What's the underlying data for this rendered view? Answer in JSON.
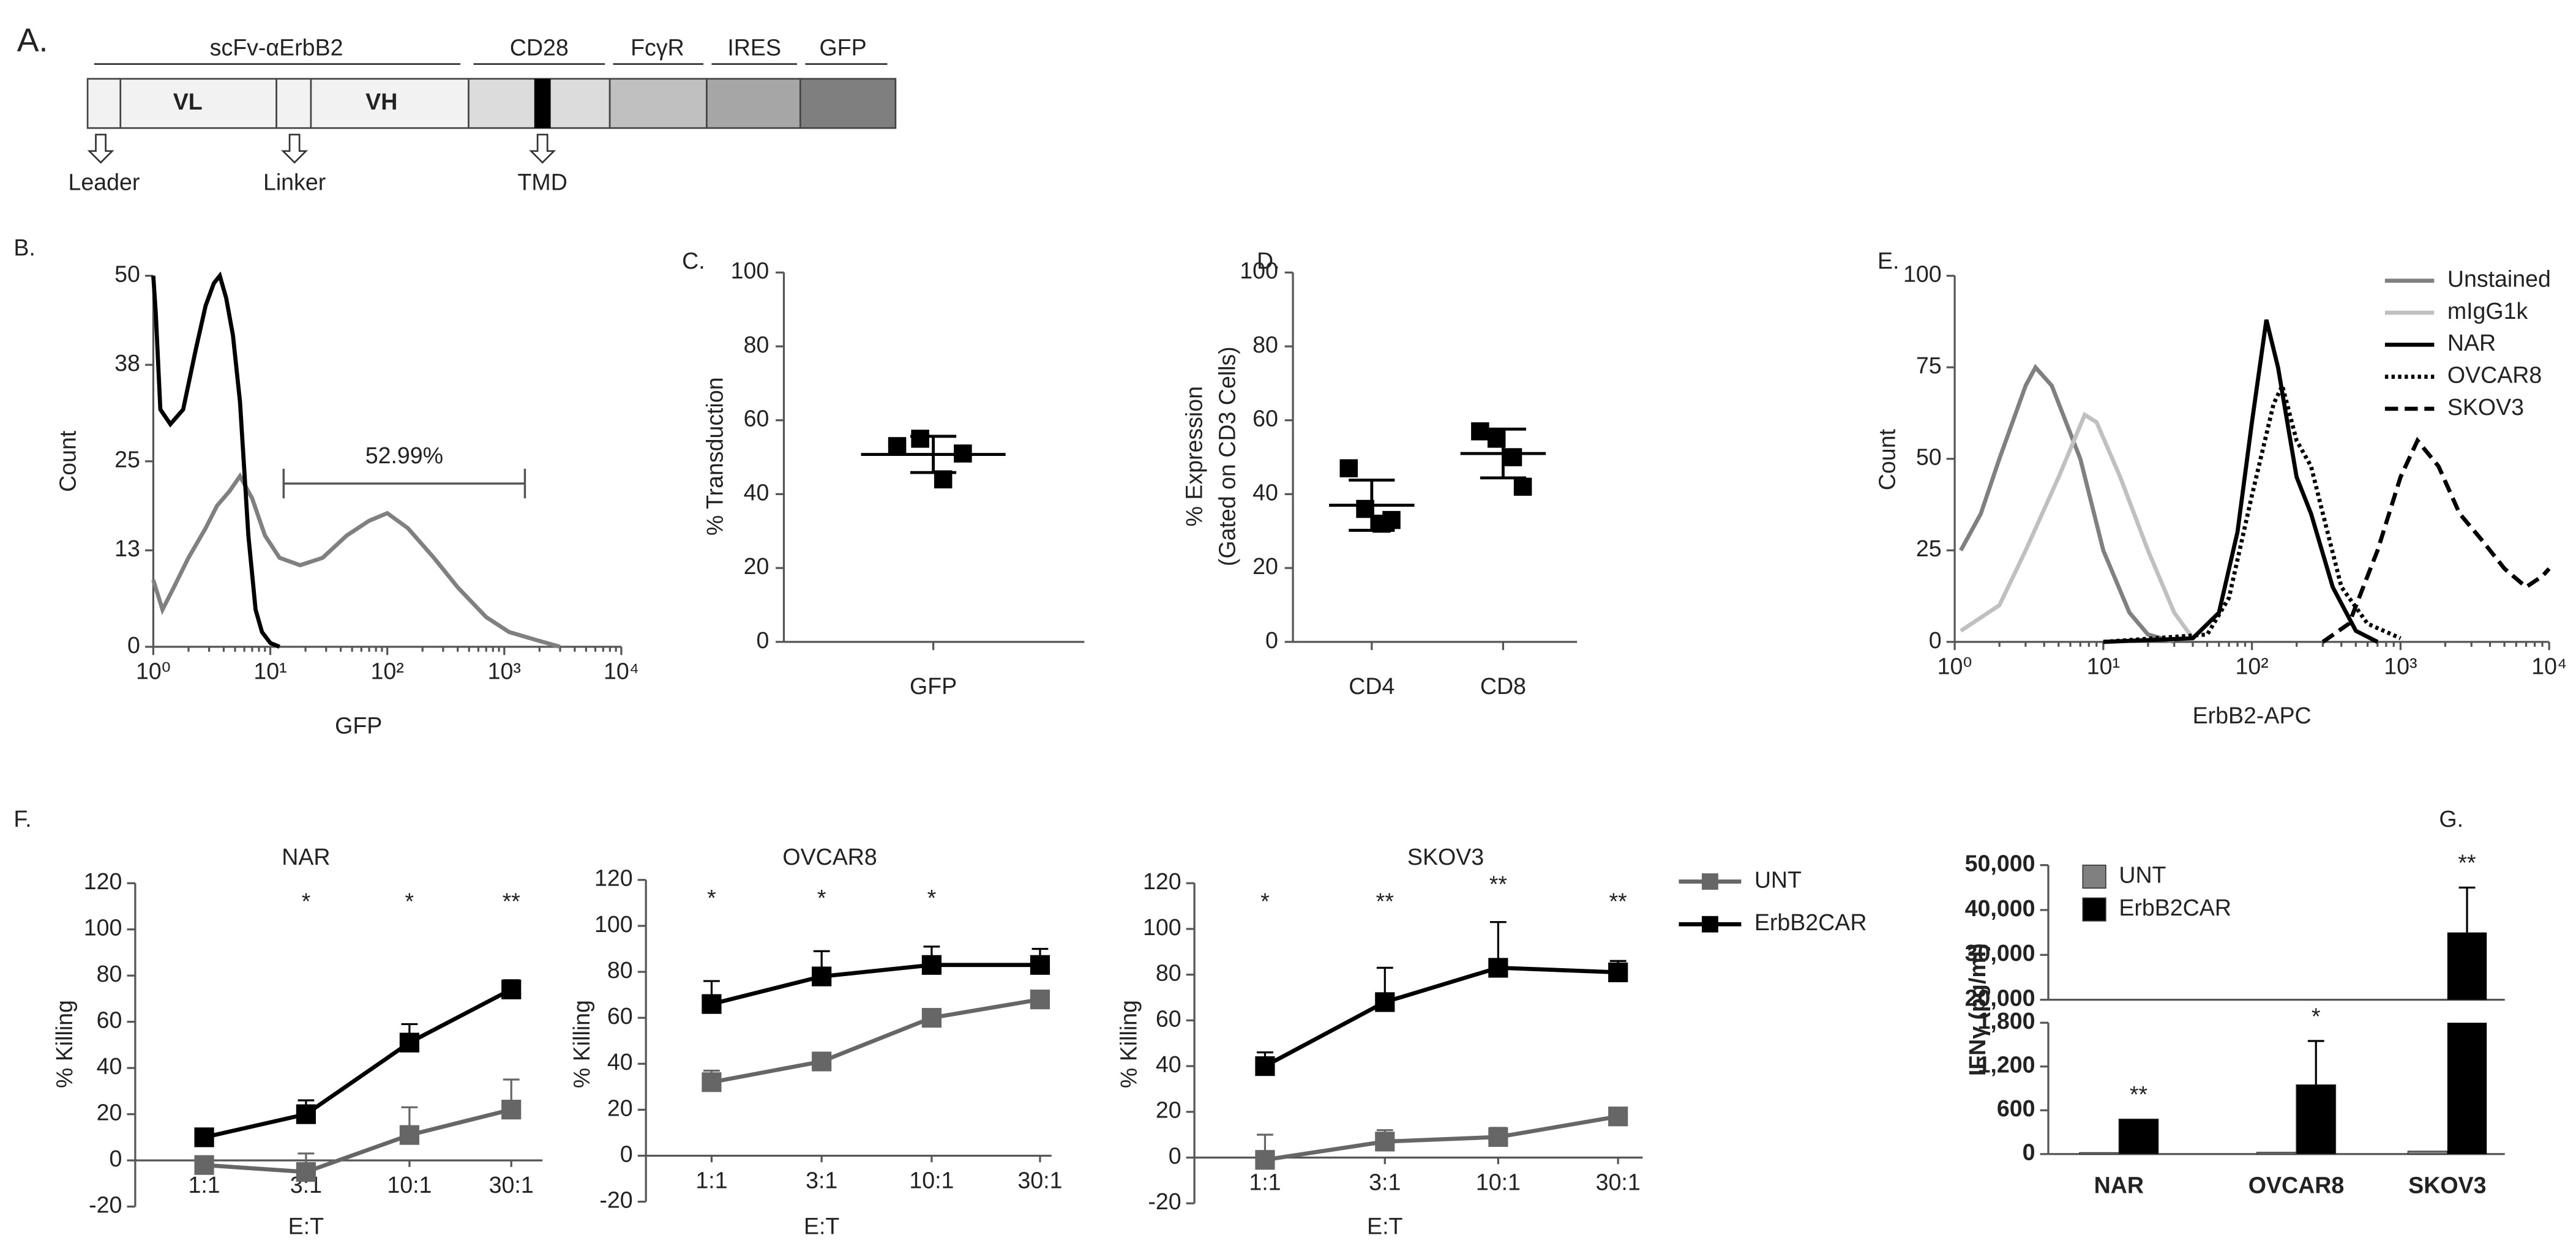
{
  "panel_a": {
    "label": "A.",
    "headers": [
      "scFv-αErbB2",
      "CD28",
      "FcγR",
      "IRES",
      "GFP"
    ],
    "domains": [
      "VL",
      "VH"
    ],
    "arrows": [
      "Leader",
      "Linker",
      "TMD"
    ]
  },
  "chart_data": [
    {
      "type": "line",
      "panel_label": "B.",
      "x_label": "GFP",
      "y_label": "Count",
      "xscale": "log",
      "xlim": [
        1,
        10000
      ],
      "xticks": [
        {
          "value": 1,
          "label": "10⁰"
        },
        {
          "value": 10,
          "label": "10¹"
        },
        {
          "value": 100,
          "label": "10²"
        },
        {
          "value": 1000,
          "label": "10³"
        },
        {
          "value": 10000,
          "label": "10⁴"
        }
      ],
      "ylim": [
        0,
        50
      ],
      "yticks": [
        0,
        13,
        25,
        38,
        50
      ],
      "series": [
        {
          "color": "#808080",
          "x": [
            1,
            1.2,
            1.5,
            2,
            2.8,
            3.5,
            4.5,
            5.5,
            7,
            9,
            12,
            18,
            28,
            45,
            70,
            100,
            150,
            250,
            400,
            700,
            1100,
            1800,
            3000
          ],
          "values": [
            9,
            5,
            8,
            12,
            16,
            19,
            21,
            23,
            20,
            15,
            12,
            11,
            12,
            15,
            17,
            18,
            16,
            12,
            8,
            4,
            2,
            1,
            0
          ]
        },
        {
          "color": "#000000",
          "x": [
            1,
            1.05,
            1.15,
            1.4,
            1.8,
            2.3,
            2.8,
            3.3,
            3.7,
            4.2,
            4.8,
            5.5,
            6.5,
            7.5,
            8.5,
            10,
            12
          ],
          "values": [
            50,
            45,
            32,
            30,
            32,
            40,
            46,
            49,
            50,
            47,
            42,
            33,
            15,
            5,
            2,
            0.5,
            0
          ]
        }
      ],
      "annotation": {
        "text": "52.99%",
        "x": [
          13,
          1500
        ],
        "y": 22
      }
    },
    {
      "type": "dot",
      "panel_label": "C.",
      "y_label": "% Transduction",
      "categories": [
        "GFP"
      ],
      "ylim": [
        0,
        100
      ],
      "yticks": [
        0,
        20,
        40,
        60,
        80,
        100
      ],
      "color": "#000000",
      "groups": [
        {
          "values": [
            53,
            55,
            44,
            51
          ],
          "mean": 50.75,
          "sd": 4.9
        }
      ]
    },
    {
      "type": "dot",
      "panel_label": "D.",
      "y_label": [
        "% Expression",
        "(Gated on CD3 Cells)"
      ],
      "categories": [
        "CD4",
        "CD8"
      ],
      "ylim": [
        0,
        100
      ],
      "yticks": [
        0,
        20,
        40,
        60,
        80,
        100
      ],
      "color": "#000000",
      "groups": [
        {
          "values": [
            47,
            36,
            32,
            33
          ],
          "mean": 37,
          "sd": 6.8
        },
        {
          "values": [
            57,
            55,
            50,
            42
          ],
          "mean": 51,
          "sd": 6.6
        }
      ]
    },
    {
      "type": "line",
      "panel_label": "E.",
      "x_label": "ErbB2-APC",
      "y_label": "Count",
      "xscale": "log",
      "xlim": [
        1,
        10000
      ],
      "xticks": [
        {
          "value": 1,
          "label": "10⁰"
        },
        {
          "value": 10,
          "label": "10¹"
        },
        {
          "value": 100,
          "label": "10²"
        },
        {
          "value": 1000,
          "label": "10³"
        },
        {
          "value": 10000,
          "label": "10⁴"
        }
      ],
      "ylim": [
        0,
        100
      ],
      "yticks": [
        0,
        25,
        50,
        75,
        100
      ],
      "series": [
        {
          "name": "Unstained",
          "color": "#808080",
          "style": "solid",
          "x": [
            1.1,
            1.5,
            2,
            3,
            3.5,
            4.5,
            7,
            10,
            15,
            20,
            30
          ],
          "values": [
            25,
            35,
            50,
            70,
            75,
            70,
            50,
            25,
            8,
            2,
            0
          ]
        },
        {
          "name": "mIgG1k",
          "color": "#c0c0c0",
          "style": "solid",
          "x": [
            1.1,
            2,
            3,
            5,
            7.5,
            9,
            13,
            20,
            30,
            40
          ],
          "values": [
            3,
            10,
            25,
            45,
            62,
            60,
            45,
            25,
            8,
            1
          ]
        },
        {
          "name": "NAR",
          "color": "#000000",
          "style": "solid",
          "x": [
            10,
            40,
            60,
            80,
            100,
            125,
            150,
            200,
            250,
            350,
            500,
            700
          ],
          "values": [
            0,
            1,
            8,
            30,
            60,
            88,
            75,
            45,
            35,
            15,
            3,
            0
          ]
        },
        {
          "name": "OVCAR8",
          "color": "#000000",
          "style": "dotted",
          "x": [
            10,
            50,
            70,
            100,
            140,
            160,
            200,
            250,
            300,
            400,
            600,
            1000
          ],
          "values": [
            0,
            2,
            12,
            40,
            65,
            70,
            55,
            48,
            35,
            15,
            5,
            1
          ]
        },
        {
          "name": "SKOV3",
          "color": "#000000",
          "style": "dashed",
          "x": [
            300,
            450,
            700,
            1000,
            1300,
            1800,
            2500,
            3500,
            5000,
            7000,
            9000,
            10000
          ],
          "values": [
            0,
            5,
            25,
            45,
            55,
            48,
            35,
            28,
            20,
            15,
            18,
            20
          ]
        }
      ]
    },
    {
      "type": "line",
      "panel_label": "F.",
      "title": "NAR",
      "x_label": "E:T",
      "y_label": "% Killing",
      "categories": [
        "1:1",
        "3:1",
        "10:1",
        "30:1"
      ],
      "ylim": [
        -20,
        120
      ],
      "yticks": [
        -20,
        0,
        20,
        40,
        60,
        80,
        100,
        120
      ],
      "series": [
        {
          "color": "#666666",
          "marker": "square",
          "values": [
            -2,
            -5,
            11,
            22
          ],
          "errors": [
            3,
            8,
            12,
            13
          ]
        },
        {
          "color": "#000000",
          "marker": "square",
          "values": [
            10,
            20,
            51,
            74
          ],
          "errors": [
            2,
            6,
            8,
            4
          ]
        }
      ],
      "stars": [
        null,
        "*",
        "*",
        "**"
      ]
    },
    {
      "type": "line",
      "title": "OVCAR8",
      "x_label": "E:T",
      "y_label": "% Killing",
      "categories": [
        "1:1",
        "3:1",
        "10:1",
        "30:1"
      ],
      "ylim": [
        -20,
        120
      ],
      "yticks": [
        -20,
        0,
        20,
        40,
        60,
        80,
        100,
        120
      ],
      "series": [
        {
          "color": "#666666",
          "marker": "square",
          "values": [
            32,
            41,
            60,
            68
          ],
          "errors": [
            5,
            3,
            3,
            3
          ]
        },
        {
          "color": "#000000",
          "marker": "square",
          "values": [
            66,
            78,
            83,
            83
          ],
          "errors": [
            10,
            11,
            8,
            7
          ]
        }
      ],
      "stars": [
        "*",
        "*",
        "*",
        null
      ]
    },
    {
      "type": "line",
      "title": "SKOV3",
      "x_label": "E:T",
      "y_label": "% Killing",
      "categories": [
        "1:1",
        "3:1",
        "10:1",
        "30:1"
      ],
      "ylim": [
        -20,
        120
      ],
      "yticks": [
        -20,
        0,
        20,
        40,
        60,
        80,
        100,
        120
      ],
      "series": [
        {
          "name": "UNT",
          "color": "#666666",
          "marker": "square",
          "values": [
            -1,
            7,
            9,
            18
          ],
          "errors": [
            11,
            5,
            4,
            2
          ]
        },
        {
          "name": "ErbB2CAR",
          "color": "#000000",
          "marker": "square",
          "values": [
            40,
            68,
            83,
            81
          ],
          "errors": [
            6,
            15,
            20,
            5
          ]
        }
      ],
      "stars": [
        "*",
        "**",
        "**",
        "**"
      ]
    },
    {
      "type": "bar",
      "panel_label": "G.",
      "y_label": "IFNγ (pg/ml)",
      "categories": [
        "NAR",
        "OVCAR8",
        "SKOV3"
      ],
      "ylim_lower": [
        0,
        1800
      ],
      "yticks_lower": [
        0,
        600,
        {
          "value": 1200,
          "label": "1,200"
        },
        {
          "value": 1800,
          "label": "1,800"
        }
      ],
      "ylim_upper": [
        20000,
        50000
      ],
      "yticks_upper": [
        {
          "value": 20000,
          "label": "20,000"
        },
        {
          "value": 30000,
          "label": "30,000"
        },
        {
          "value": 40000,
          "label": "40,000"
        },
        {
          "value": 50000,
          "label": "50,000"
        }
      ],
      "series": [
        {
          "name": "UNT",
          "color": "#808080",
          "values": [
            20,
            25,
            40
          ]
        },
        {
          "name": "ErbB2CAR",
          "color": "#000000",
          "values": [
            480,
            950,
            35000
          ],
          "errors": [
            null,
            600,
            10000
          ]
        }
      ],
      "stars": [
        "**",
        "*",
        "**"
      ]
    }
  ]
}
